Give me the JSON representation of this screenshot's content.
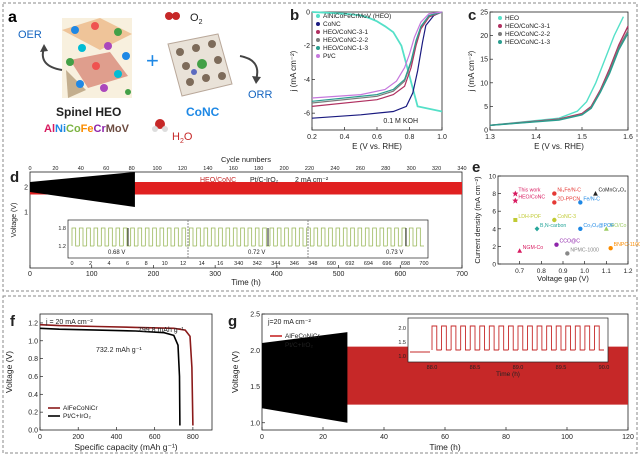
{
  "panel_a": {
    "letter": "a",
    "o2": "O",
    "o2_sub": "2",
    "h2o": "H",
    "h2o_sub": "2",
    "h2o_end": "O",
    "oer": "OER",
    "orr": "ORR",
    "spinel_heo": "Spinel HEO",
    "conc": "CoNC",
    "formula": [
      {
        "t": "Al",
        "color": "#d81b60"
      },
      {
        "t": "Ni",
        "color": "#1e88e5"
      },
      {
        "t": "Co",
        "color": "#7cb342"
      },
      {
        "t": "Fe",
        "color": "#fb8c00"
      },
      {
        "t": "Cr",
        "color": "#8e24aa"
      },
      {
        "t": "MoV",
        "color": "#6d4c41"
      }
    ]
  },
  "chart_data": [
    {
      "id": "b",
      "type": "line",
      "letter": "b",
      "xlabel": "E (V vs. RHE)",
      "ylabel": "j (mA cm⁻²)",
      "xlim": [
        0.2,
        1.0
      ],
      "ylim": [
        -7,
        0
      ],
      "xticks": [
        "0.2",
        "0.4",
        "0.6",
        "0.8",
        "1.0"
      ],
      "yticks": [
        "-6",
        "-4",
        "-2",
        "0"
      ],
      "annotation": "0.1 M KOH",
      "series": [
        {
          "name": "AlNiCoFeCrMoV (HEO)",
          "color": "#55e0c8",
          "x": [
            0.2,
            0.4,
            0.5,
            0.55,
            0.6,
            0.65,
            0.7,
            0.75,
            0.85,
            1.0
          ],
          "y": [
            0,
            -0.1,
            -0.2,
            -0.35,
            -0.55,
            -0.85,
            -1.2,
            -2.0,
            -5.6,
            -5.9
          ]
        },
        {
          "name": "CoNC",
          "color": "#1a1a80",
          "x": [
            0.2,
            0.5,
            0.7,
            0.78,
            0.82,
            0.85,
            0.88,
            0.9,
            0.95,
            1.0
          ],
          "y": [
            -6.3,
            -6.1,
            -5.9,
            -5.6,
            -4.8,
            -3.5,
            -1.8,
            -0.8,
            -0.2,
            0
          ]
        },
        {
          "name": "HEO/CoNC-3-1",
          "color": "#b03060",
          "x": [
            0.2,
            0.6,
            0.7,
            0.77,
            0.81,
            0.84,
            0.87,
            0.92,
            1.0
          ],
          "y": [
            -5.6,
            -5.2,
            -4.9,
            -4.4,
            -3.3,
            -2.0,
            -1.0,
            -0.3,
            0
          ]
        },
        {
          "name": "HEO/CoNC-2-2",
          "color": "#7a7a7a",
          "x": [
            0.2,
            0.6,
            0.7,
            0.77,
            0.81,
            0.84,
            0.87,
            0.92,
            1.0
          ],
          "y": [
            -5.4,
            -5.0,
            -4.7,
            -4.1,
            -3.0,
            -1.8,
            -0.9,
            -0.25,
            0
          ]
        },
        {
          "name": "HEO/CoNC-1-3",
          "color": "#2a9d8f",
          "x": [
            0.2,
            0.6,
            0.7,
            0.77,
            0.81,
            0.84,
            0.87,
            0.92,
            1.0
          ],
          "y": [
            -5.3,
            -4.9,
            -4.6,
            -4.0,
            -2.9,
            -1.7,
            -0.85,
            -0.2,
            0
          ]
        },
        {
          "name": "Pt/C",
          "color": "#c678dd",
          "x": [
            0.2,
            0.5,
            0.65,
            0.72,
            0.77,
            0.8,
            0.83,
            0.87,
            0.92,
            1.0
          ],
          "y": [
            -5.1,
            -4.9,
            -4.6,
            -4.1,
            -3.3,
            -2.5,
            -1.5,
            -0.6,
            -0.1,
            0
          ]
        }
      ]
    },
    {
      "id": "c",
      "type": "line",
      "letter": "c",
      "xlabel": "E (V vs. RHE)",
      "ylabel": "j (mA cm⁻²)",
      "xlim": [
        1.3,
        1.6
      ],
      "ylim": [
        0,
        25
      ],
      "xticks": [
        "1.3",
        "1.4",
        "1.5",
        "1.6"
      ],
      "yticks": [
        "0",
        "5",
        "10",
        "15",
        "20",
        "25"
      ],
      "series": [
        {
          "name": "HEO",
          "color": "#55e0c8",
          "x": [
            1.3,
            1.45,
            1.49,
            1.51,
            1.53,
            1.55,
            1.57,
            1.59
          ],
          "y": [
            1,
            2.5,
            4,
            6,
            10,
            15,
            20,
            24
          ]
        },
        {
          "name": "HEO/CoNC-3-1",
          "color": "#b03060",
          "x": [
            1.3,
            1.45,
            1.5,
            1.52,
            1.54,
            1.56,
            1.58,
            1.6
          ],
          "y": [
            1,
            2.3,
            3.5,
            5,
            8.5,
            13,
            18,
            22
          ]
        },
        {
          "name": "HEO/CoNC-2-2",
          "color": "#7a7a7a",
          "x": [
            1.3,
            1.45,
            1.5,
            1.52,
            1.54,
            1.56,
            1.58,
            1.6
          ],
          "y": [
            1,
            2.2,
            3.3,
            4.8,
            8.2,
            12.5,
            17.5,
            21
          ]
        },
        {
          "name": "HEO/CoNC-1-3",
          "color": "#2a9d8f",
          "x": [
            1.3,
            1.45,
            1.5,
            1.52,
            1.54,
            1.56,
            1.58,
            1.6
          ],
          "y": [
            1,
            2.1,
            3.2,
            4.6,
            8,
            12,
            17,
            20.5
          ]
        }
      ]
    },
    {
      "id": "d",
      "type": "line",
      "letter": "d",
      "xlabel": "Time (h)",
      "ylabel": "Voltage (V)",
      "top_axis_label": "Cycle numbers",
      "xlim": [
        0,
        700
      ],
      "ylim": [
        0,
        3
      ],
      "xticks": [
        "0",
        "100",
        "200",
        "300",
        "400",
        "500",
        "600",
        "700"
      ],
      "top_ticks": [
        "0",
        "20",
        "40",
        "60",
        "80",
        "100",
        "120",
        "140",
        "160",
        "180",
        "200",
        "220",
        "240",
        "260",
        "280",
        "300",
        "320",
        "340"
      ],
      "yticks": [
        "1",
        "2"
      ],
      "legend": [
        "HEO/CoNC",
        "Pt/C-IrO₂",
        "2 mA cm⁻²"
      ],
      "band_series": [
        {
          "name": "HEO/CoNC",
          "color": "#e02020",
          "x": [
            0,
            700
          ],
          "ymin": 1.7,
          "ymax": 2.2
        },
        {
          "name": "Pt/C-IrO₂",
          "color": "#000000",
          "x": [
            0,
            170
          ],
          "ymin": [
            1.8,
            1.2
          ],
          "ymax": [
            2.2,
            2.6
          ]
        }
      ],
      "inset": {
        "xticks": [
          "0",
          "2",
          "4",
          "6",
          "8",
          "10",
          "12",
          "14",
          "16",
          "340",
          "342",
          "344",
          "346",
          "348",
          "690",
          "692",
          "694",
          "696",
          "698",
          "700"
        ],
        "yticks": [
          "1.2",
          "1.8"
        ],
        "gaps": [
          "0.68 V",
          "0.72 V",
          "0.73 V"
        ],
        "voltage_high": 1.8,
        "voltage_low": 1.2,
        "color": "#9ab85a"
      }
    },
    {
      "id": "e",
      "type": "scatter",
      "letter": "e",
      "xlabel": "Voltage gap (V)",
      "ylabel": "Current density (mA cm⁻²)",
      "xlim": [
        0.6,
        1.2
      ],
      "ylim": [
        0,
        10
      ],
      "xticks": [
        "0.7",
        "0.8",
        "0.9",
        "1.0",
        "1.1",
        "1.2"
      ],
      "yticks": [
        "0",
        "2",
        "4",
        "6",
        "8",
        "10"
      ],
      "points": [
        {
          "label": "This work",
          "x": 0.68,
          "y": 8,
          "color": "#d81b60",
          "marker": "star"
        },
        {
          "label": "HEO/CoNC",
          "x": 0.68,
          "y": 7.2,
          "color": "#d81b60",
          "marker": "star"
        },
        {
          "label": "Ni₃Fe/N-C",
          "x": 0.86,
          "y": 8,
          "color": "#e53935",
          "marker": "circle"
        },
        {
          "label": "2D-PPCN",
          "x": 0.86,
          "y": 7,
          "color": "#e53935",
          "marker": "circle"
        },
        {
          "label": "Fe/N-C",
          "x": 0.98,
          "y": 7,
          "color": "#1e88e5",
          "marker": "circle"
        },
        {
          "label": "CoMnCr₂O₄",
          "x": 1.05,
          "y": 8,
          "color": "#222222",
          "marker": "triangle"
        },
        {
          "label": "LDH-POF",
          "x": 0.68,
          "y": 5,
          "color": "#c0ca33",
          "marker": "square"
        },
        {
          "label": "CoNC-3",
          "x": 0.86,
          "y": 5,
          "color": "#c0ca33",
          "marker": "circle"
        },
        {
          "label": "NiO/Co",
          "x": 1.1,
          "y": 4,
          "color": "#9ccc65",
          "marker": "triangle"
        },
        {
          "label": "B,N-carbon",
          "x": 0.78,
          "y": 4,
          "color": "#26a69a",
          "marker": "diamond"
        },
        {
          "label": "Co₃O₄@POF",
          "x": 0.98,
          "y": 4,
          "color": "#1e88e5",
          "marker": "circle"
        },
        {
          "label": "CCO@C",
          "x": 0.87,
          "y": 2.2,
          "color": "#8e24aa",
          "marker": "circle"
        },
        {
          "label": "NGM-Co",
          "x": 0.7,
          "y": 1.5,
          "color": "#d81b60",
          "marker": "triangle"
        },
        {
          "label": "NPMC-1000",
          "x": 0.92,
          "y": 1.2,
          "color": "#888888",
          "marker": "circle"
        },
        {
          "label": "BNPC-1100",
          "x": 1.12,
          "y": 1.8,
          "color": "#fb8c00",
          "marker": "circle"
        }
      ]
    },
    {
      "id": "f",
      "type": "line",
      "letter": "f",
      "xlabel": "Specific capacity (mAh g⁻¹)",
      "ylabel": "Voltage (V)",
      "xlim": [
        0,
        900
      ],
      "ylim": [
        0,
        1.3
      ],
      "xticks": [
        "0",
        "200",
        "400",
        "600",
        "800"
      ],
      "yticks": [
        "0.0",
        "0.2",
        "0.4",
        "0.6",
        "0.8",
        "1.0",
        "1.2"
      ],
      "annotation": "j = 20 mA cm⁻²",
      "labels": [
        "799.8 mAh g⁻¹",
        "732.2 mAh g⁻¹"
      ],
      "series": [
        {
          "name": "AlFeCoNiCr",
          "color": "#8b1a1a",
          "x": [
            0,
            100,
            300,
            500,
            700,
            760,
            785,
            795,
            800
          ],
          "y": [
            1.18,
            1.17,
            1.16,
            1.15,
            1.14,
            1.12,
            1.05,
            0.7,
            0.05
          ]
        },
        {
          "name": "Pt/C+IrO₂",
          "color": "#000000",
          "x": [
            0,
            100,
            300,
            500,
            650,
            700,
            722,
            730,
            732
          ],
          "y": [
            1.14,
            1.13,
            1.12,
            1.11,
            1.09,
            1.06,
            0.95,
            0.6,
            0.05
          ]
        }
      ]
    },
    {
      "id": "g",
      "type": "line",
      "letter": "g",
      "xlabel": "Time (h)",
      "ylabel": "Voltage (V)",
      "xlim": [
        0,
        120
      ],
      "ylim": [
        0.9,
        2.5
      ],
      "xticks": [
        "0",
        "20",
        "40",
        "60",
        "80",
        "100",
        "120"
      ],
      "yticks": [
        "1.0",
        "1.5",
        "2.0",
        "2.5"
      ],
      "annotation": "j=20 mA cm⁻²",
      "band_series": [
        {
          "name": "AlFeCoNiCr",
          "color": "#c62828",
          "x": [
            0,
            120
          ],
          "ymin": 1.25,
          "ymax": 2.05
        },
        {
          "name": "Pt/C+IrO₂",
          "color": "#000000",
          "x": [
            0,
            28
          ],
          "ymin": [
            1.2,
            1.0
          ],
          "ymax": [
            2.1,
            2.25
          ]
        }
      ],
      "inset": {
        "xlabel": "Time (h)",
        "xticks": [
          "88.0",
          "88.5",
          "89.0",
          "89.5",
          "90.0"
        ],
        "yticks": [
          "1.0",
          "1.5",
          "2.0"
        ],
        "color": "#c62828"
      }
    }
  ]
}
